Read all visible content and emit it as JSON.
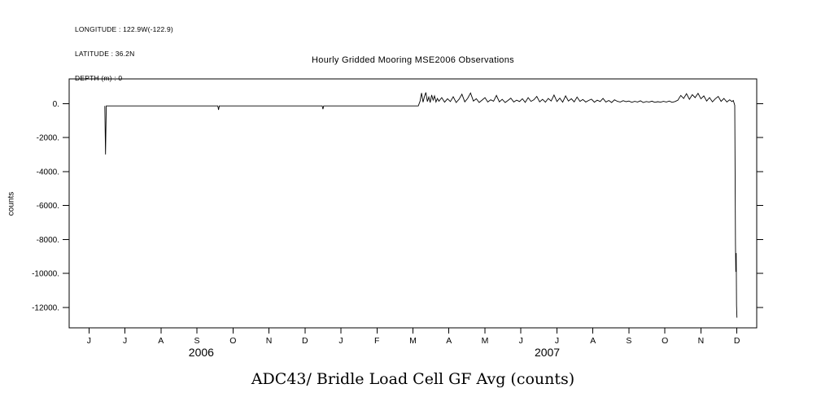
{
  "header": {
    "longitude": "LONGITUDE : 122.9W(-122.9)",
    "latitude": "LATITUDE : 36.2N",
    "depth": "DEPTH (m) : 0"
  },
  "colors": {
    "ink": "#000000",
    "background": "#ffffff"
  },
  "chart_data": {
    "type": "line",
    "title": "Hourly Gridded Mooring MSE2006 Observations",
    "bottom_title": "ADC43/ Bridle Load Cell GF Avg (counts)",
    "xlabel": "",
    "ylabel": "counts",
    "grid": false,
    "legend": "none",
    "ylim": [
      -13200,
      1450
    ],
    "xlim_months": [
      -0.55,
      18.55
    ],
    "y_ticks": [
      0,
      -2000,
      -4000,
      -6000,
      -8000,
      -10000,
      -12000
    ],
    "y_tick_labels": [
      "0.",
      "-2000.",
      "-4000.",
      "-6000.",
      "-8000.",
      "-10000.",
      "-12000."
    ],
    "x_tick_labels": [
      "J",
      "J",
      "A",
      "S",
      "O",
      "N",
      "D",
      "J",
      "F",
      "M",
      "A",
      "M",
      "J",
      "J",
      "A",
      "S",
      "O",
      "N",
      "D"
    ],
    "x_axis_note": "months June 2006 through December 2007, month index 0 = June 2006 tick",
    "year_labels": [
      {
        "label": "2006",
        "month": 3.12
      },
      {
        "label": "2007",
        "month": 12.73
      }
    ],
    "series": [
      {
        "name": "ADC43 Bridle Load Cell GF Avg",
        "units": "counts",
        "points": [
          [
            0.44,
            -140
          ],
          [
            0.46,
            -3000
          ],
          [
            0.48,
            -140
          ],
          [
            1.0,
            -140
          ],
          [
            2.0,
            -140
          ],
          [
            3.0,
            -140
          ],
          [
            3.58,
            -140
          ],
          [
            3.6,
            -370
          ],
          [
            3.62,
            -140
          ],
          [
            4.5,
            -140
          ],
          [
            5.5,
            -140
          ],
          [
            6.48,
            -140
          ],
          [
            6.5,
            -330
          ],
          [
            6.52,
            -140
          ],
          [
            7.5,
            -140
          ],
          [
            8.5,
            -140
          ],
          [
            9.15,
            -140
          ],
          [
            9.2,
            150
          ],
          [
            9.24,
            620
          ],
          [
            9.28,
            80
          ],
          [
            9.32,
            420
          ],
          [
            9.36,
            650
          ],
          [
            9.4,
            120
          ],
          [
            9.44,
            380
          ],
          [
            9.48,
            60
          ],
          [
            9.52,
            500
          ],
          [
            9.56,
            200
          ],
          [
            9.6,
            450
          ],
          [
            9.64,
            90
          ],
          [
            9.68,
            300
          ],
          [
            9.72,
            140
          ],
          [
            9.8,
            350
          ],
          [
            9.88,
            80
          ],
          [
            9.96,
            280
          ],
          [
            10.04,
            120
          ],
          [
            10.12,
            400
          ],
          [
            10.2,
            60
          ],
          [
            10.28,
            250
          ],
          [
            10.36,
            550
          ],
          [
            10.44,
            100
          ],
          [
            10.52,
            300
          ],
          [
            10.6,
            620
          ],
          [
            10.68,
            150
          ],
          [
            10.76,
            280
          ],
          [
            10.84,
            60
          ],
          [
            10.92,
            200
          ],
          [
            11.0,
            350
          ],
          [
            11.08,
            90
          ],
          [
            11.16,
            220
          ],
          [
            11.24,
            140
          ],
          [
            11.32,
            480
          ],
          [
            11.4,
            100
          ],
          [
            11.48,
            250
          ],
          [
            11.56,
            60
          ],
          [
            11.64,
            180
          ],
          [
            11.72,
            320
          ],
          [
            11.8,
            90
          ],
          [
            11.88,
            200
          ],
          [
            11.96,
            120
          ],
          [
            12.04,
            280
          ],
          [
            12.12,
            70
          ],
          [
            12.2,
            350
          ],
          [
            12.28,
            130
          ],
          [
            12.36,
            220
          ],
          [
            12.44,
            420
          ],
          [
            12.52,
            100
          ],
          [
            12.6,
            250
          ],
          [
            12.68,
            80
          ],
          [
            12.76,
            300
          ],
          [
            12.84,
            150
          ],
          [
            12.92,
            500
          ],
          [
            13.0,
            120
          ],
          [
            13.08,
            320
          ],
          [
            13.16,
            80
          ],
          [
            13.24,
            450
          ],
          [
            13.32,
            150
          ],
          [
            13.4,
            280
          ],
          [
            13.48,
            100
          ],
          [
            13.56,
            380
          ],
          [
            13.64,
            130
          ],
          [
            13.72,
            240
          ],
          [
            13.8,
            90
          ],
          [
            13.88,
            180
          ],
          [
            13.96,
            260
          ],
          [
            14.04,
            80
          ],
          [
            14.12,
            200
          ],
          [
            14.2,
            120
          ],
          [
            14.28,
            300
          ],
          [
            14.36,
            90
          ],
          [
            14.44,
            180
          ],
          [
            14.52,
            60
          ],
          [
            14.6,
            220
          ],
          [
            14.68,
            130
          ],
          [
            14.76,
            90
          ],
          [
            14.84,
            170
          ],
          [
            14.92,
            110
          ],
          [
            15.0,
            150
          ],
          [
            15.08,
            70
          ],
          [
            15.16,
            130
          ],
          [
            15.24,
            90
          ],
          [
            15.32,
            160
          ],
          [
            15.4,
            60
          ],
          [
            15.48,
            120
          ],
          [
            15.56,
            90
          ],
          [
            15.64,
            140
          ],
          [
            15.72,
            70
          ],
          [
            15.8,
            110
          ],
          [
            15.88,
            80
          ],
          [
            15.96,
            130
          ],
          [
            16.04,
            90
          ],
          [
            16.12,
            150
          ],
          [
            16.2,
            70
          ],
          [
            16.28,
            120
          ],
          [
            16.36,
            200
          ],
          [
            16.44,
            480
          ],
          [
            16.52,
            300
          ],
          [
            16.6,
            580
          ],
          [
            16.68,
            250
          ],
          [
            16.76,
            520
          ],
          [
            16.84,
            350
          ],
          [
            16.92,
            600
          ],
          [
            17.0,
            280
          ],
          [
            17.08,
            450
          ],
          [
            17.16,
            150
          ],
          [
            17.24,
            350
          ],
          [
            17.32,
            100
          ],
          [
            17.4,
            280
          ],
          [
            17.48,
            420
          ],
          [
            17.56,
            130
          ],
          [
            17.64,
            300
          ],
          [
            17.72,
            90
          ],
          [
            17.8,
            220
          ],
          [
            17.86,
            120
          ],
          [
            17.9,
            180
          ],
          [
            17.94,
            -100
          ],
          [
            17.96,
            -8300
          ],
          [
            17.97,
            -9900
          ],
          [
            17.98,
            -8800
          ],
          [
            17.99,
            -11900
          ],
          [
            18.0,
            -12600
          ]
        ]
      }
    ]
  }
}
